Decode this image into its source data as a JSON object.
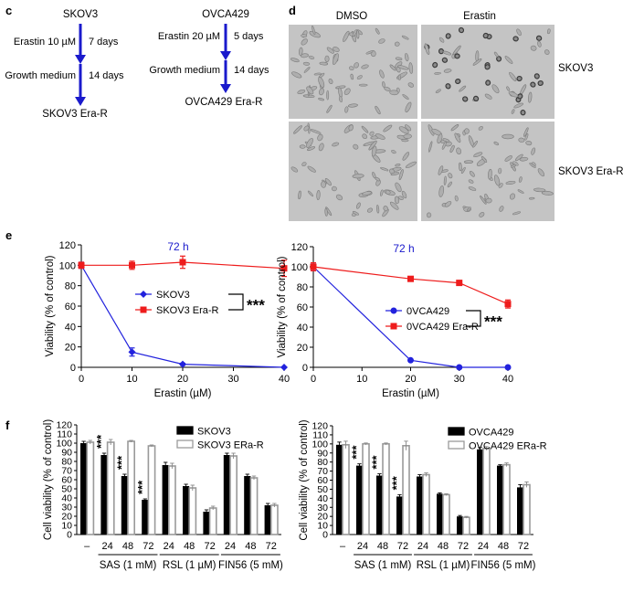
{
  "panels": {
    "c": {
      "letter": "c",
      "left": {
        "title": "SKOV3",
        "step1": "Erastin 10 µM",
        "step1_time": "7 days",
        "step2": "Growth medium",
        "step2_time": "14 days",
        "result": "SKOV3 Era-R"
      },
      "right": {
        "title": "OVCA429",
        "step1": "Erastin 20 µM",
        "step1_time": "5 days",
        "step2": "Growth medium",
        "step2_time": "14 days",
        "result": "OVCA429 Era-R"
      },
      "arrow_color": "#1a1acc"
    },
    "d": {
      "letter": "d",
      "col_labels": [
        "DMSO",
        "Erastin"
      ],
      "row_labels": [
        "SKOV3",
        "SKOV3 Era-R"
      ]
    },
    "e": {
      "letter": "e"
    },
    "f": {
      "letter": "f"
    }
  },
  "chart_data": [
    {
      "id": "e-left",
      "type": "line",
      "title": "72 h",
      "xlabel": "Erastin (µM)",
      "ylabel": "Viability (% of control)",
      "xlim": [
        0,
        40
      ],
      "ylim": [
        0,
        120
      ],
      "xticks": [
        0,
        10,
        20,
        30,
        40
      ],
      "yticks": [
        0,
        20,
        40,
        60,
        80,
        100,
        120
      ],
      "significance": "***",
      "legend_position": "center",
      "series": [
        {
          "name": "SKOV3",
          "color": "#2222dd",
          "marker": "diamond",
          "x": [
            0,
            10,
            20,
            40
          ],
          "y": [
            100,
            15,
            3,
            0
          ],
          "err": [
            3,
            4,
            1,
            0
          ]
        },
        {
          "name": "SKOV3 Era-R",
          "color": "#ee1c1c",
          "marker": "square",
          "x": [
            0,
            10,
            20,
            40
          ],
          "y": [
            100,
            100,
            103,
            97
          ],
          "err": [
            3,
            4,
            6,
            8
          ]
        }
      ]
    },
    {
      "id": "e-right",
      "type": "line",
      "title": "72 h",
      "xlabel": "Erastin (µM)",
      "ylabel": "Viability (% of control)",
      "xlim": [
        0,
        40
      ],
      "ylim": [
        0,
        120
      ],
      "xticks": [
        0,
        10,
        20,
        30,
        40
      ],
      "yticks": [
        0,
        20,
        40,
        60,
        80,
        100,
        120
      ],
      "significance": "***",
      "legend_position": "center",
      "series": [
        {
          "name": "0VCA429",
          "color": "#2222dd",
          "marker": "circle",
          "x": [
            0,
            20,
            30,
            40
          ],
          "y": [
            100,
            7,
            0,
            0
          ],
          "err": [
            4,
            1,
            0,
            0
          ]
        },
        {
          "name": "0VCA429 Era-R",
          "color": "#ee1c1c",
          "marker": "square",
          "x": [
            0,
            20,
            30,
            40
          ],
          "y": [
            100,
            88,
            84,
            63
          ],
          "err": [
            4,
            2,
            2,
            4
          ]
        }
      ]
    },
    {
      "id": "f-left",
      "type": "bar",
      "ylabel": "Cell viability (% of control)",
      "ylim": [
        0,
        120
      ],
      "yticks": [
        0,
        10,
        20,
        30,
        40,
        50,
        60,
        70,
        80,
        90,
        100,
        110,
        120
      ],
      "categories": [
        "–",
        "24",
        "48",
        "72",
        "24",
        "48",
        "72",
        "24",
        "48",
        "72"
      ],
      "groups": [
        {
          "label": "SAS (1 mM)",
          "range": [
            1,
            3
          ]
        },
        {
          "label": "RSL (1 µM)",
          "range": [
            4,
            6
          ]
        },
        {
          "label": "FIN56 (5 mM)",
          "range": [
            7,
            9
          ]
        }
      ],
      "stars": [
        "",
        "***",
        "***",
        "***",
        "",
        "",
        "",
        "",
        "",
        ""
      ],
      "legend_position": "top-left",
      "series": [
        {
          "name": "SKOV3",
          "color": "#000000",
          "values": [
            100,
            87,
            64,
            38,
            76,
            53,
            25,
            87,
            64,
            32
          ],
          "err": [
            2,
            2,
            2,
            1,
            3,
            2,
            2,
            2,
            2,
            2
          ]
        },
        {
          "name": "SKOV3 ERa-R",
          "color": "#aaaaaa",
          "values": [
            101,
            101,
            102,
            97,
            75,
            51,
            29,
            86,
            62,
            32
          ],
          "err": [
            2,
            3,
            1,
            1,
            3,
            3,
            2,
            3,
            2,
            2
          ]
        }
      ]
    },
    {
      "id": "f-right",
      "type": "bar",
      "ylabel": "Cell viability (% of control)",
      "ylim": [
        0,
        120
      ],
      "yticks": [
        0,
        10,
        20,
        30,
        40,
        50,
        60,
        70,
        80,
        90,
        100,
        110,
        120
      ],
      "categories": [
        "–",
        "24",
        "48",
        "72",
        "24",
        "48",
        "72",
        "24",
        "48",
        "72"
      ],
      "groups": [
        {
          "label": "SAS (1 mM)",
          "range": [
            1,
            3
          ]
        },
        {
          "label": "RSL (1 µM)",
          "range": [
            4,
            6
          ]
        },
        {
          "label": "FIN56 (5 mM)",
          "range": [
            7,
            9
          ]
        }
      ],
      "stars": [
        "",
        "***",
        "***",
        "***",
        "",
        "",
        "",
        "",
        "",
        ""
      ],
      "legend_position": "top-left",
      "series": [
        {
          "name": "OVCA429",
          "color": "#000000",
          "values": [
            99,
            76,
            65,
            42,
            64,
            45,
            20,
            94,
            76,
            52
          ],
          "err": [
            3,
            2,
            2,
            2,
            2,
            1,
            1,
            2,
            1,
            3
          ]
        },
        {
          "name": "OVCA429 ERa-R",
          "color": "#aaaaaa",
          "values": [
            99,
            100,
            100,
            98,
            66,
            44,
            19,
            95,
            77,
            55
          ],
          "err": [
            4,
            1,
            1,
            5,
            2,
            1,
            1,
            2,
            2,
            3
          ]
        }
      ]
    }
  ]
}
